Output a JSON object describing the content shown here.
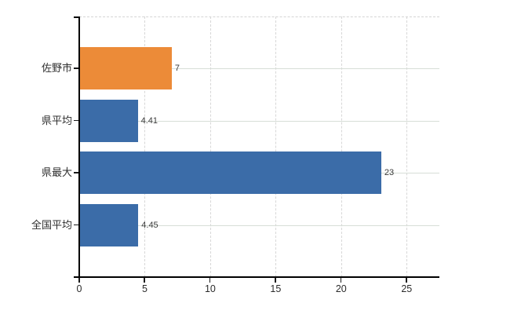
{
  "chart_data": {
    "type": "bar",
    "orientation": "horizontal",
    "title": "",
    "xlabel": "",
    "ylabel": "",
    "categories": [
      "佐野市",
      "県平均",
      "県最大",
      "全国平均"
    ],
    "values": [
      7,
      4.41,
      23,
      4.45
    ],
    "value_labels": [
      "7",
      "4.41",
      "23",
      "4.45"
    ],
    "bar_colors": [
      "#ec8b38",
      "#3b6ca8",
      "#3b6ca8",
      "#3b6ca8"
    ],
    "x_ticks": [
      0,
      5,
      10,
      15,
      20,
      25
    ],
    "x_tick_labels": [
      "0",
      "5",
      "10",
      "15",
      "20",
      "25"
    ],
    "xlim": [
      0,
      27.5
    ],
    "legend": "none",
    "grid": {
      "vertical": "dashed",
      "horizontal": "solid-at-category-centers"
    }
  },
  "colors": {
    "accent_orange": "#ec8b38",
    "series_blue": "#3b6ca8",
    "axis": "#000000",
    "grid_vertical": "#d7d7d7",
    "grid_horizontal": "#d7ded7",
    "background": "#ffffff",
    "text": "#2e2e2e"
  }
}
